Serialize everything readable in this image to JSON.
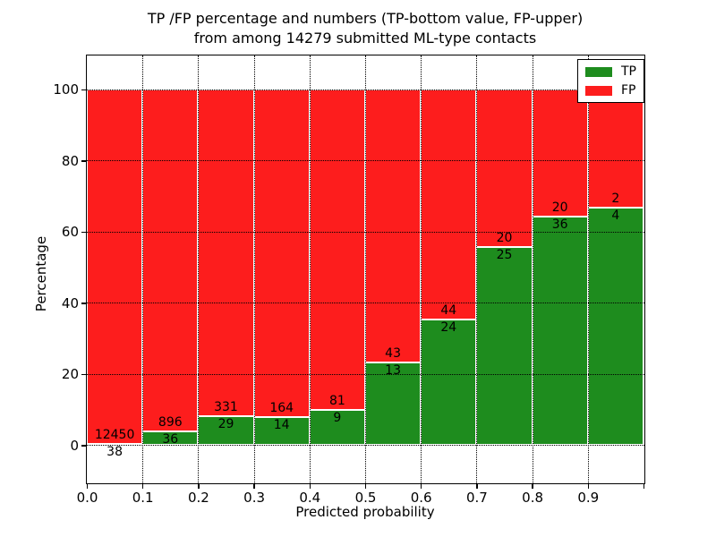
{
  "title": {
    "lines": [
      "TP /FP percentage and numbers (TP-bottom value, FP-upper)",
      "from among 14279 submitted ML-type contacts"
    ]
  },
  "axes": {
    "xlabel": "Predicted probability",
    "ylabel": "Percentage"
  },
  "legend": {
    "position": "upper right",
    "entries": [
      {
        "label": "TP",
        "color": "#1e8c1e"
      },
      {
        "label": "FP",
        "color": "#fd1d1d"
      }
    ]
  },
  "chart_data": {
    "type": "bar",
    "subtype": "stacked-100-percent",
    "title": "TP /FP percentage and numbers (TP-bottom value, FP-upper) from among 14279 submitted ML-type contacts",
    "xlabel": "Predicted probability",
    "ylabel": "Percentage",
    "total_contacts": 14279,
    "bin_start": [
      0.0,
      0.1,
      0.2,
      0.3,
      0.4,
      0.5,
      0.6,
      0.7,
      0.8,
      0.9
    ],
    "bin_width": 0.1,
    "series": [
      {
        "name": "TP",
        "color": "#1e8c1e",
        "counts": [
          38,
          36,
          29,
          14,
          9,
          13,
          24,
          25,
          36,
          4
        ]
      },
      {
        "name": "FP",
        "color": "#fd1d1d",
        "counts": [
          12450,
          896,
          331,
          164,
          81,
          43,
          44,
          20,
          20,
          2
        ]
      }
    ],
    "tp_percent_heights": [
      0.3,
      3.86,
      8.06,
      7.87,
      10.0,
      23.21,
      35.29,
      55.56,
      64.29,
      66.67
    ],
    "bars_total_percent": 100,
    "x_tick_values": [
      0.0,
      0.1,
      0.2,
      0.3,
      0.4,
      0.5,
      0.6,
      0.7,
      0.8,
      0.9
    ],
    "x_tick_labels": [
      "0.0",
      "0.1",
      "0.2",
      "0.3",
      "0.4",
      "0.5",
      "0.6",
      "0.7",
      "0.8",
      "0.9"
    ],
    "y_tick_values": [
      0,
      20,
      40,
      60,
      80,
      100
    ],
    "y_tick_labels": [
      "0",
      "20",
      "40",
      "60",
      "80",
      "100"
    ],
    "xlim": [
      0,
      1
    ],
    "ylim": [
      -10.5,
      109.5
    ],
    "grid": "dotted both axes",
    "bar_edge_color": "#ffffff",
    "legend_position": "upper right"
  }
}
